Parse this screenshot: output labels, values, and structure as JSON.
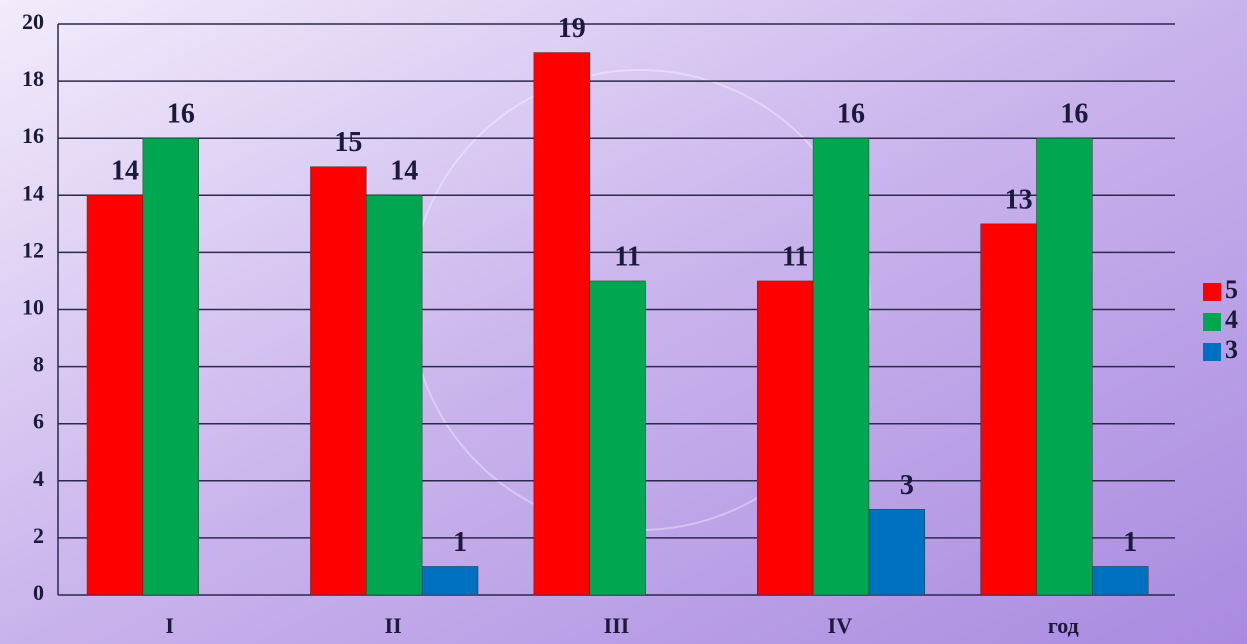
{
  "chart_data": {
    "type": "bar",
    "categories": [
      "I",
      "II",
      "III",
      "IV",
      "год"
    ],
    "series": [
      {
        "name": "5",
        "color": "#ff0000",
        "values": [
          14,
          15,
          19,
          11,
          13
        ]
      },
      {
        "name": "4",
        "color": "#00a650",
        "values": [
          16,
          14,
          11,
          16,
          16
        ]
      },
      {
        "name": "3",
        "color": "#0070c0",
        "values": [
          null,
          1,
          null,
          3,
          1
        ]
      }
    ],
    "ylim": [
      0,
      20
    ],
    "yticks": [
      0,
      2,
      4,
      6,
      8,
      10,
      12,
      14,
      16,
      18,
      20
    ],
    "grid": true,
    "legend": "right"
  }
}
